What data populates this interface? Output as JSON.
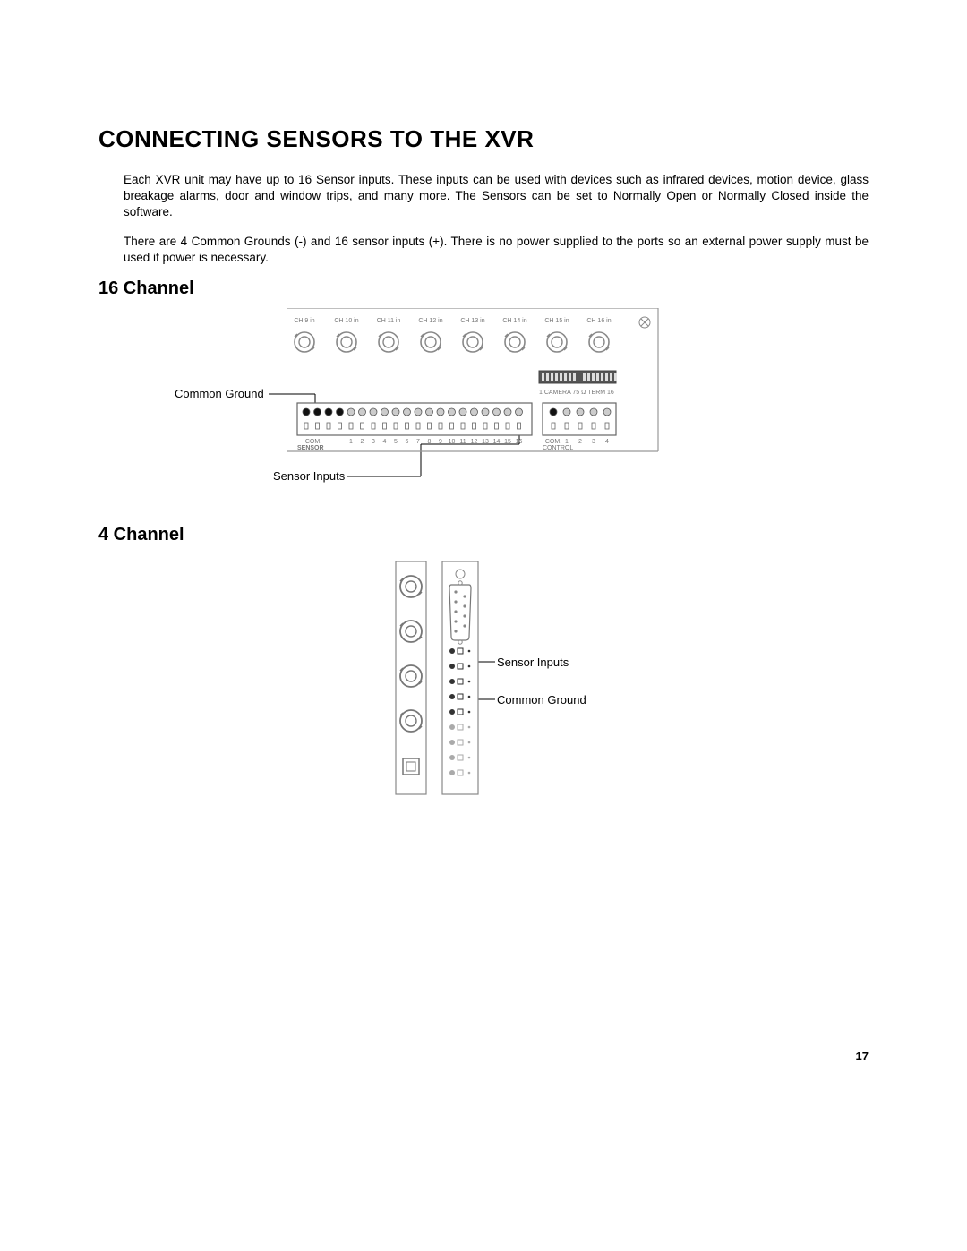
{
  "title": "CONNECTING SENSORS TO THE XVR",
  "para1": "Each XVR unit may have up to 16 Sensor inputs. These inputs can be used with devices such as infrared devices, motion device, glass breakage alarms, door and window trips, and many more. The Sensors can be set to Normally Open or Normally Closed inside the software.",
  "para2": "There are 4 Common Grounds (-) and 16 sensor inputs (+). There is no power supplied to the ports so an external power supply must be used if power is necessary.",
  "sub16": "16 Channel",
  "sub4": "4 Channel",
  "label_common_ground": "Common Ground",
  "label_sensor_inputs": "Sensor Inputs",
  "pagenum": "17",
  "diagram16": {
    "ch_labels": [
      "CH 9 in",
      "CH 10 in",
      "CH 11 in",
      "CH 12 in",
      "CH 13 in",
      "CH 14 in",
      "CH 15 in",
      "CH 16 in"
    ],
    "term_label": "1 CAMERA 75 Ω   TERM 16",
    "sensor_word": "SENSOR",
    "com_word": "COM.",
    "sensor_nums": [
      "1",
      "2",
      "3",
      "4",
      "5",
      "6",
      "7",
      "8",
      "9",
      "10",
      "11",
      "12",
      "13",
      "14",
      "15",
      "16"
    ],
    "control_label": "CONTROL",
    "control_nums": [
      "COM.",
      "1",
      "2",
      "3",
      "4"
    ],
    "colors": {
      "panel_stroke": "#888888",
      "panel_fill": "#ffffff",
      "dark": "#333333",
      "mid": "#888888",
      "light": "#bbbbbb",
      "black": "#000000"
    }
  },
  "diagram4": {
    "colors": {
      "stroke": "#777777",
      "fill": "#ffffff",
      "dark": "#555555",
      "black": "#000000"
    }
  }
}
